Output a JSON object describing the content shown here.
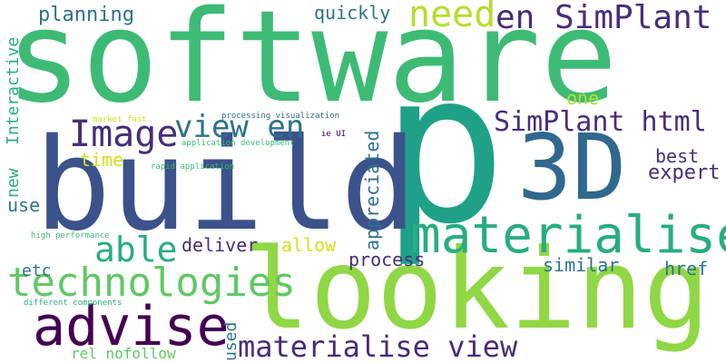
{
  "colors": {
    "green": "#3dbb75",
    "lime": "#8fd744",
    "yellowgreen": "#b5de2b",
    "teal": "#1fa187",
    "cyan": "#27ad81",
    "blue": "#2c728e",
    "indigo": "#3b528b",
    "purple": "#472d7b",
    "darkpurple": "#440154",
    "slate": "#31688e",
    "mint": "#5ec962",
    "yellow": "#d2e21b"
  },
  "words": [
    {
      "text": "software"
    },
    {
      "text": "p"
    },
    {
      "text": "build"
    },
    {
      "text": "looking"
    },
    {
      "text": "3D"
    },
    {
      "text": "materialise"
    },
    {
      "text": "advise"
    },
    {
      "text": "technologies"
    },
    {
      "text": "Image"
    },
    {
      "text": "view en"
    },
    {
      "text": "materialise view"
    },
    {
      "text": "en SimPlant"
    },
    {
      "text": "need"
    },
    {
      "text": "SimPlant html"
    },
    {
      "text": "able"
    },
    {
      "text": "planning"
    },
    {
      "text": "quickly"
    },
    {
      "text": "Interactive"
    },
    {
      "text": "new"
    },
    {
      "text": "appreciated"
    },
    {
      "text": "one"
    },
    {
      "text": "best"
    },
    {
      "text": "expert"
    },
    {
      "text": "time"
    },
    {
      "text": "use"
    },
    {
      "text": "deliver"
    },
    {
      "text": "allow"
    },
    {
      "text": "process"
    },
    {
      "text": "similar"
    },
    {
      "text": "href"
    },
    {
      "text": "etc"
    },
    {
      "text": "used"
    },
    {
      "text": "rel nofollow"
    },
    {
      "text": "market fast"
    },
    {
      "text": "processing visualization"
    },
    {
      "text": "ie UI"
    },
    {
      "text": "application development"
    },
    {
      "text": "rapid application"
    },
    {
      "text": "high performance"
    },
    {
      "text": "different components"
    }
  ]
}
